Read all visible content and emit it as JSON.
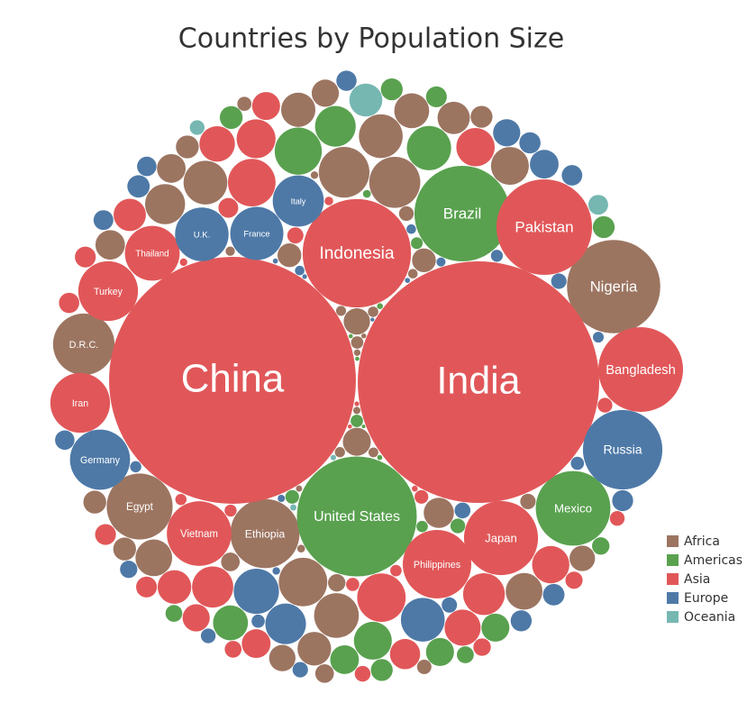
{
  "chart_data": {
    "type": "bubble-pack",
    "title": "Countries by Population Size",
    "series": [
      {
        "name": "Africa",
        "color": "#9c7561",
        "categories": [
          "Nigeria",
          "Ethiopia",
          "Egypt",
          "D.R.C.",
          null,
          null,
          null,
          null,
          null,
          null,
          null,
          null,
          null,
          null,
          null,
          null,
          null,
          null,
          null,
          null,
          null,
          null,
          null,
          null,
          null,
          null,
          null,
          null,
          null,
          null,
          null,
          null,
          null,
          null,
          null,
          null,
          null,
          null,
          null,
          null,
          null,
          null,
          null,
          null,
          null,
          null,
          null,
          null,
          null,
          null,
          null,
          null
        ],
        "values": [
          200,
          110,
          100,
          87,
          60,
          59,
          54,
          46,
          44,
          44,
          37,
          33,
          31,
          31,
          28,
          27,
          26,
          24,
          21,
          20,
          19,
          18,
          17,
          16,
          16,
          15,
          13,
          13,
          12,
          12,
          12,
          11,
          8,
          8,
          7,
          5.5,
          5,
          4.8,
          4.6,
          3.5,
          2.5,
          2.4,
          2.3,
          2.2,
          2.1,
          2,
          1.4,
          1.3,
          1.2,
          1,
          0.9,
          0.55
        ]
      },
      {
        "name": "Americas",
        "color": "#59a14f",
        "categories": [
          "United States",
          "Brazil",
          "Mexico",
          null,
          null,
          null,
          null,
          null,
          null,
          null,
          null,
          null,
          null,
          null,
          null,
          null,
          null,
          null,
          null,
          null,
          null,
          null,
          null,
          null,
          null,
          null,
          null,
          null,
          null,
          null
        ],
        "values": [
          330,
          210,
          128,
          51,
          45,
          38,
          33,
          28,
          19,
          18,
          18,
          12,
          11,
          11,
          11,
          10,
          7,
          6.6,
          6.5,
          5,
          4.3,
          3.5,
          3.2,
          3,
          1.4,
          0.8,
          0.6,
          0.4,
          0.4,
          0.3
        ]
      },
      {
        "name": "Asia",
        "color": "#e15759",
        "categories": [
          "China",
          "India",
          "Indonesia",
          "Pakistan",
          "Bangladesh",
          "Japan",
          "Philippines",
          "Vietnam",
          "Turkey",
          "Iran",
          "Thailand",
          null,
          null,
          null,
          null,
          null,
          null,
          null,
          null,
          null,
          null,
          null,
          null,
          null,
          null,
          null,
          null,
          null,
          null,
          null,
          null,
          null,
          null,
          null,
          null,
          null,
          null,
          null,
          null,
          null,
          null,
          null,
          null,
          null,
          null,
          null,
          null,
          null
        ],
        "values": [
          1400,
          1340,
          270,
          210,
          165,
          126,
          108,
          96,
          82,
          82,
          69,
          54,
          52,
          40,
          39,
          35,
          34,
          32,
          30,
          29,
          26,
          24,
          21,
          19,
          18,
          17,
          10,
          10,
          10,
          9.5,
          9,
          7,
          6.8,
          6.5,
          6,
          5.7,
          5,
          5,
          4.3,
          4,
          3.3,
          3,
          2.9,
          1.7,
          1.3,
          0.8,
          0.5,
          0.4
        ]
      },
      {
        "name": "Europe",
        "color": "#4e79a7",
        "categories": [
          "Russia",
          "Germany",
          "U.K.",
          "France",
          "Italy",
          null,
          null,
          null,
          null,
          null,
          null,
          null,
          null,
          null,
          null,
          null,
          null,
          null,
          null,
          null,
          null,
          null,
          null,
          null,
          null,
          null,
          null,
          null,
          null,
          null,
          null,
          null,
          null,
          null,
          null,
          null,
          null,
          null,
          null,
          null
        ],
        "values": [
          145,
          83,
          66,
          65,
          60,
          47,
          44,
          38,
          19,
          17,
          11.5,
          10.7,
          10.4,
          10.2,
          10.1,
          9.7,
          9.4,
          9,
          8.7,
          8.7,
          6.9,
          5.8,
          5.5,
          5.5,
          5.4,
          5,
          4,
          4,
          3.3,
          2.9,
          2.7,
          2.1,
          2.1,
          1.9,
          1.3,
          1.2,
          0.6,
          0.6,
          0.5,
          0.34
        ]
      },
      {
        "name": "Oceania",
        "color": "#76b7b2",
        "categories": [
          null,
          null,
          null,
          null,
          null
        ],
        "values": [
          25,
          9,
          5,
          0.9,
          0.7
        ]
      }
    ]
  }
}
